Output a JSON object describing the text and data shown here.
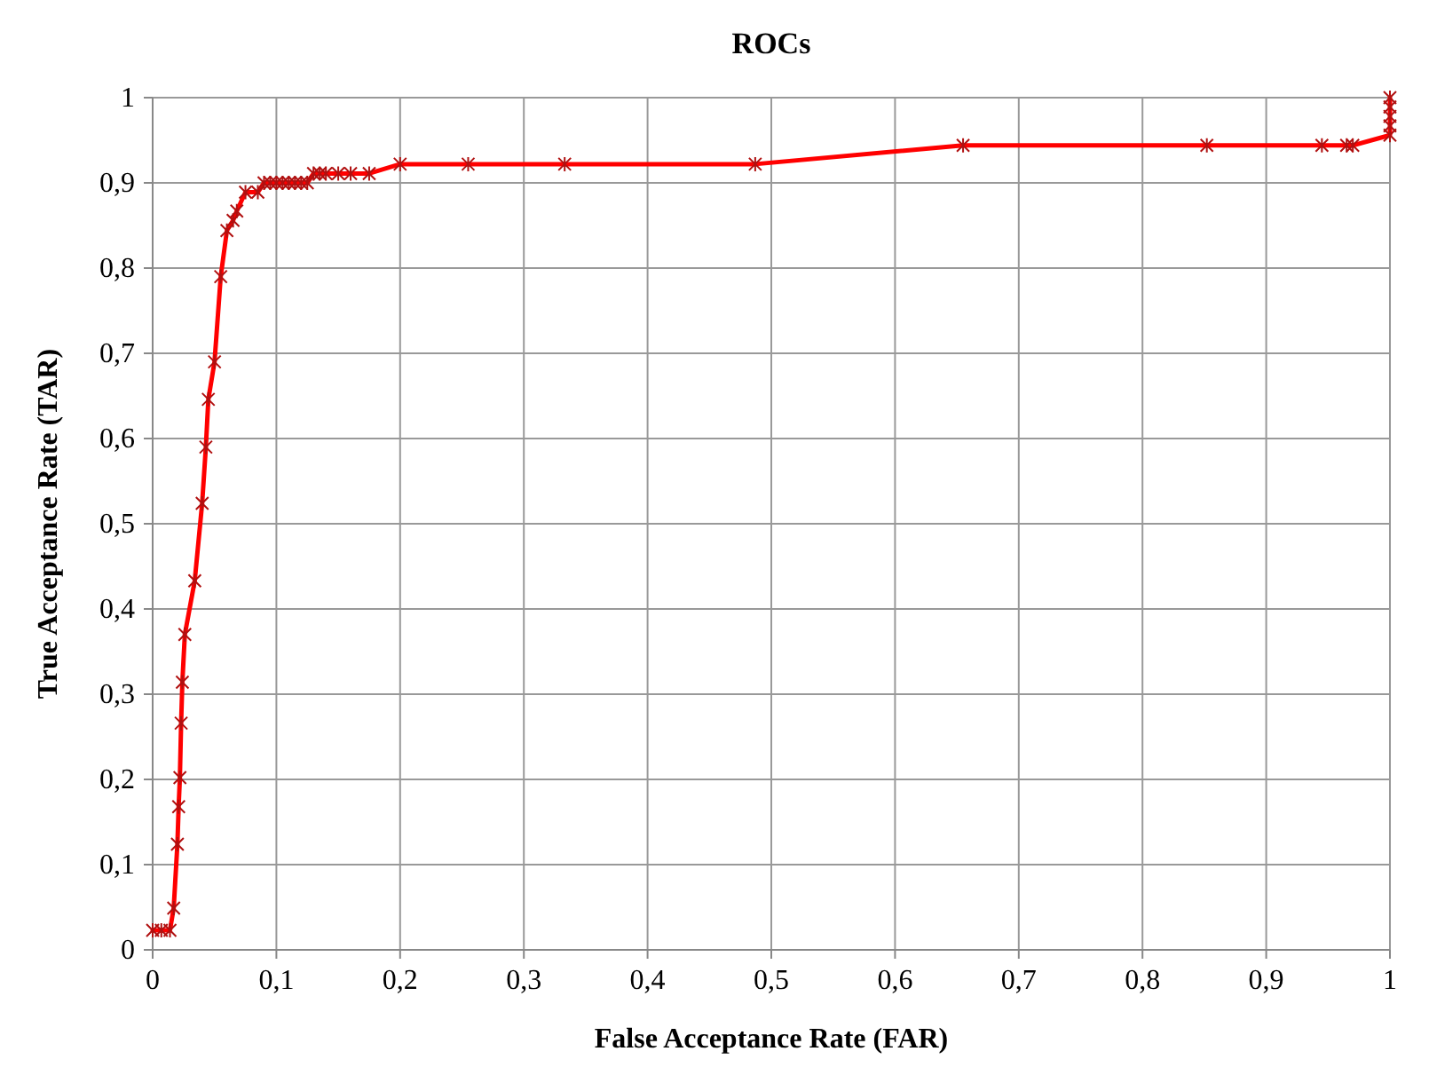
{
  "chart_data": {
    "type": "line",
    "title": "ROCs",
    "xlabel": "False Acceptance Rate (FAR)",
    "ylabel": "True Acceptance Rate (TAR)",
    "xlim": [
      0,
      1
    ],
    "xticks": [
      0,
      {
        "value": 0.1,
        "label": "0,1"
      },
      {
        "value": 0.2,
        "label": "0,2"
      },
      {
        "value": 0.3,
        "label": "0,3"
      },
      {
        "value": 0.4,
        "label": "0,4"
      },
      {
        "value": 0.5,
        "label": "0,5"
      },
      {
        "value": 0.6,
        "label": "0,6"
      },
      {
        "value": 0.7,
        "label": "0,7"
      },
      {
        "value": 0.8,
        "label": "0,8"
      },
      {
        "value": 0.9,
        "label": "0,9"
      },
      1
    ],
    "ylim": [
      0,
      1
    ],
    "yticks": [
      0,
      {
        "value": 0.1,
        "label": "0,1"
      },
      {
        "value": 0.2,
        "label": "0,2"
      },
      {
        "value": 0.3,
        "label": "0,3"
      },
      {
        "value": 0.4,
        "label": "0,4"
      },
      {
        "value": 0.5,
        "label": "0,5"
      },
      {
        "value": 0.6,
        "label": "0,6"
      },
      {
        "value": 0.7,
        "label": "0,7"
      },
      {
        "value": 0.8,
        "label": "0,8"
      },
      {
        "value": 0.9,
        "label": "0,9"
      },
      1
    ],
    "grid": true,
    "marker": "cross",
    "line_style": "solid",
    "x": [
      0,
      0.007,
      0.014,
      0.017,
      0.02,
      0.021,
      0.022,
      0.023,
      0.024,
      0.026,
      0.034,
      0.04,
      0.043,
      0.045,
      0.05,
      0.055,
      0.06,
      0.065,
      0.068,
      0.075,
      0.085,
      0.09,
      0.095,
      0.1,
      0.105,
      0.11,
      0.115,
      0.12,
      0.125,
      0.13,
      0.135,
      0.14,
      0.15,
      0.16,
      0.175,
      0.2,
      0.255,
      0.333,
      0.487,
      0.655,
      0.852,
      0.945,
      0.965,
      0.97,
      1,
      1,
      1,
      1,
      1
    ],
    "series": [
      {
        "color": "#ff0000",
        "values": [
          0.023,
          0.023,
          0.023,
          0.049,
          0.124,
          0.168,
          0.202,
          0.266,
          0.314,
          0.37,
          0.433,
          0.524,
          0.59,
          0.646,
          0.69,
          0.79,
          0.844,
          0.856,
          0.867,
          0.889,
          0.889,
          0.9,
          0.9,
          0.9,
          0.9,
          0.9,
          0.9,
          0.9,
          0.9,
          0.911,
          0.911,
          0.911,
          0.911,
          0.911,
          0.911,
          0.922,
          0.922,
          0.922,
          0.922,
          0.944,
          0.944,
          0.944,
          0.944,
          0.944,
          0.956,
          0.967,
          0.978,
          0.989,
          1
        ]
      }
    ]
  }
}
